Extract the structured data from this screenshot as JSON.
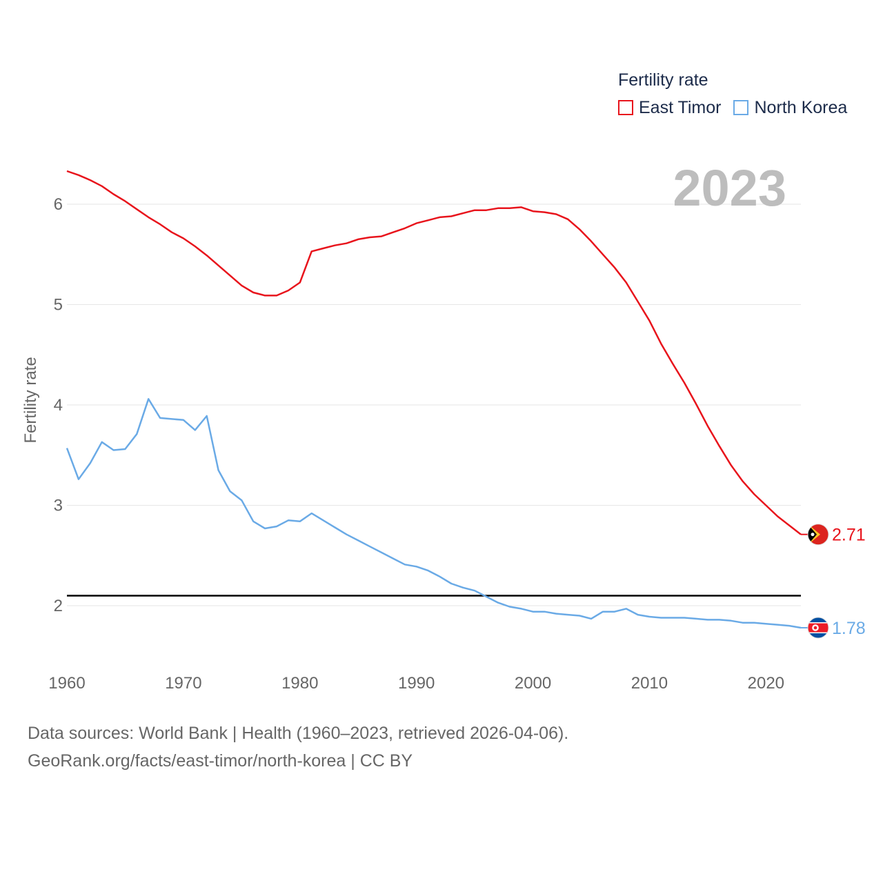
{
  "legend": {
    "title": "Fertility rate"
  },
  "year_label": "2023",
  "footer": {
    "line1": "Data sources: World Bank | Health (1960–2023, retrieved 2026-04-06).",
    "line2": "GeoRank.org/facts/east-timor/north-korea | CC BY"
  },
  "chart_data": {
    "type": "line",
    "title": "Fertility rate",
    "xlabel": "",
    "ylabel": "Fertility rate",
    "xlim": [
      1960,
      2023
    ],
    "ylim": [
      1.5,
      6.5
    ],
    "x_ticks": [
      1960,
      1970,
      1980,
      1990,
      2000,
      2010,
      2020
    ],
    "y_ticks": [
      2,
      3,
      4,
      5,
      6
    ],
    "grid": true,
    "legend_position": "top-right",
    "reference_line": {
      "y": 2.1,
      "color": "#000000"
    },
    "x": [
      1960,
      1961,
      1962,
      1963,
      1964,
      1965,
      1966,
      1967,
      1968,
      1969,
      1970,
      1971,
      1972,
      1973,
      1974,
      1975,
      1976,
      1977,
      1978,
      1979,
      1980,
      1981,
      1982,
      1983,
      1984,
      1985,
      1986,
      1987,
      1988,
      1989,
      1990,
      1991,
      1992,
      1993,
      1994,
      1995,
      1996,
      1997,
      1998,
      1999,
      2000,
      2001,
      2002,
      2003,
      2004,
      2005,
      2006,
      2007,
      2008,
      2009,
      2010,
      2011,
      2012,
      2013,
      2014,
      2015,
      2016,
      2017,
      2018,
      2019,
      2020,
      2021,
      2022,
      2023
    ],
    "series": [
      {
        "name": "East Timor",
        "color": "#e8141c",
        "flag": "east-timor-flag",
        "end_label": "2.71",
        "values": [
          6.33,
          6.29,
          6.24,
          6.18,
          6.1,
          6.03,
          5.95,
          5.87,
          5.8,
          5.72,
          5.66,
          5.58,
          5.49,
          5.39,
          5.29,
          5.19,
          5.12,
          5.09,
          5.09,
          5.14,
          5.22,
          5.53,
          5.56,
          5.59,
          5.61,
          5.65,
          5.67,
          5.68,
          5.72,
          5.76,
          5.81,
          5.84,
          5.87,
          5.88,
          5.91,
          5.94,
          5.94,
          5.96,
          5.96,
          5.97,
          5.93,
          5.92,
          5.9,
          5.85,
          5.75,
          5.63,
          5.5,
          5.37,
          5.22,
          5.03,
          4.84,
          4.61,
          4.41,
          4.22,
          4.01,
          3.79,
          3.59,
          3.4,
          3.24,
          3.11,
          3.0,
          2.89,
          2.8,
          2.71
        ]
      },
      {
        "name": "North Korea",
        "color": "#6aaae6",
        "flag": "north-korea-flag",
        "end_label": "1.78",
        "values": [
          3.57,
          3.26,
          3.42,
          3.63,
          3.55,
          3.56,
          3.71,
          4.06,
          3.87,
          3.86,
          3.85,
          3.75,
          3.89,
          3.35,
          3.14,
          3.05,
          2.84,
          2.77,
          2.79,
          2.85,
          2.84,
          2.92,
          2.85,
          2.78,
          2.71,
          2.65,
          2.59,
          2.53,
          2.47,
          2.41,
          2.39,
          2.35,
          2.29,
          2.22,
          2.18,
          2.15,
          2.09,
          2.03,
          1.99,
          1.97,
          1.94,
          1.94,
          1.92,
          1.91,
          1.9,
          1.87,
          1.94,
          1.94,
          1.97,
          1.91,
          1.89,
          1.88,
          1.88,
          1.88,
          1.87,
          1.86,
          1.86,
          1.85,
          1.83,
          1.83,
          1.82,
          1.81,
          1.8,
          1.78
        ]
      }
    ]
  }
}
